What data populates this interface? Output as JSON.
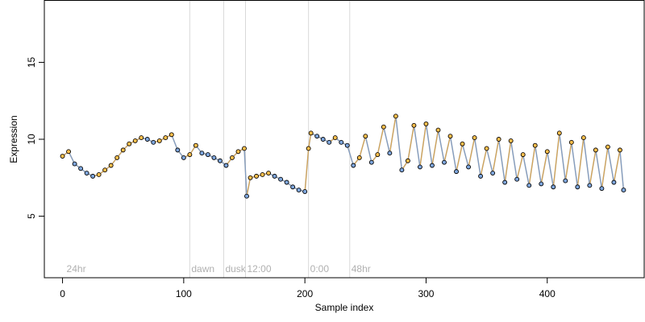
{
  "chart_data": {
    "type": "scatter",
    "title": "",
    "xlabel": "Sample index",
    "ylabel": "Expression",
    "xlim": [
      -15,
      480
    ],
    "ylim": [
      1,
      19
    ],
    "x_ticks": [
      0,
      100,
      200,
      300,
      400
    ],
    "y_ticks": [
      5,
      10,
      15
    ],
    "x_tick_labels": [
      "0",
      "100",
      "200",
      "300",
      "400"
    ],
    "y_tick_labels": [
      "5",
      "10",
      "15"
    ],
    "grid": false,
    "legend": "none",
    "phase_markers": [
      {
        "x": 2,
        "label": "24hr",
        "line": false
      },
      {
        "x": 105,
        "label": "dawn",
        "line": true
      },
      {
        "x": 133,
        "label": "dusk",
        "line": true
      },
      {
        "x": 151,
        "label": "12:00",
        "line": true
      },
      {
        "x": 203,
        "label": "0:00",
        "line": true
      },
      {
        "x": 237,
        "label": "48hr",
        "line": true
      }
    ],
    "colors": {
      "point_fill_a": "#FFC04D",
      "point_fill_b": "#7FA7DE",
      "point_edge": "#000000",
      "rise_segment": "#F5A623",
      "fall_segment": "#6F9BD8",
      "trend_line": "#A0A0A0",
      "phase_line": "#D9D9D9"
    },
    "series": [
      {
        "x": [
          0,
          5,
          10,
          15,
          20,
          25,
          30,
          35,
          40,
          45,
          50,
          55,
          60,
          65,
          70,
          75,
          80,
          85,
          90,
          95,
          100,
          105,
          110,
          115,
          120,
          125,
          130,
          135,
          140,
          145,
          150,
          152,
          155,
          160,
          165,
          170,
          175,
          180,
          185,
          190,
          195,
          200,
          203,
          205,
          210,
          215,
          220,
          225,
          230,
          235,
          240,
          245,
          250,
          255,
          260,
          265,
          270,
          275,
          280,
          285,
          290,
          295,
          300,
          305,
          310,
          315,
          320,
          325,
          330,
          335,
          340,
          345,
          350,
          355,
          360,
          365,
          370,
          375,
          380,
          385,
          390,
          395,
          400,
          405,
          410,
          415,
          420,
          425,
          430,
          435,
          440,
          445,
          450,
          455,
          460,
          463
        ],
        "y": [
          8.9,
          9.2,
          8.4,
          8.1,
          7.8,
          7.6,
          7.7,
          8.0,
          8.3,
          8.8,
          9.3,
          9.7,
          9.9,
          10.1,
          10.0,
          9.8,
          9.9,
          10.1,
          10.3,
          9.3,
          8.8,
          9.0,
          9.6,
          9.1,
          9.0,
          8.8,
          8.6,
          8.3,
          8.8,
          9.2,
          9.4,
          6.3,
          7.5,
          7.6,
          7.7,
          7.8,
          7.6,
          7.4,
          7.2,
          6.9,
          6.7,
          6.6,
          9.4,
          10.4,
          10.2,
          10.0,
          9.8,
          10.1,
          9.8,
          9.6,
          8.3,
          8.8,
          10.2,
          8.5,
          9.0,
          10.8,
          9.1,
          11.5,
          8.0,
          8.6,
          10.9,
          8.2,
          11.0,
          8.3,
          10.6,
          8.5,
          10.2,
          7.9,
          9.7,
          8.2,
          10.1,
          7.6,
          9.4,
          7.8,
          10.0,
          7.2,
          9.9,
          7.4,
          9.0,
          7.0,
          9.6,
          7.1,
          9.2,
          6.9,
          10.4,
          7.3,
          9.8,
          6.9,
          10.1,
          7.0,
          9.3,
          6.8,
          9.5,
          7.2,
          9.3,
          6.7
        ]
      }
    ]
  }
}
